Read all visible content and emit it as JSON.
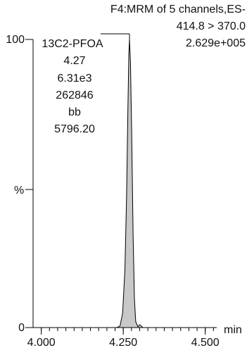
{
  "header": {
    "line1": "F4:MRM of 5 channels,ES-",
    "line2": "414.8 > 370.0",
    "line3": "2.629e+005"
  },
  "peak_label": {
    "name": "13C2-PFOA",
    "rt": "4.27",
    "area": "6.31e3",
    "height": "262846",
    "flag": "bb",
    "sn": "5796.20"
  },
  "axes": {
    "y_label": "%",
    "x_unit": "min"
  },
  "chart_data": {
    "type": "area",
    "title": "F4:MRM of 5 channels,ES-",
    "xlabel": "min",
    "ylabel": "%",
    "xlim": [
      3.975,
      4.535
    ],
    "ylim": [
      0,
      100
    ],
    "x_ticks": [
      4.0,
      4.25,
      4.5
    ],
    "x_tick_labels": [
      "4.000",
      "4.250",
      "4.500"
    ],
    "y_ticks": [
      0,
      100
    ],
    "y_tick_labels": [
      "0",
      "100"
    ],
    "fill_color": "#c8c8c8",
    "line_color": "#000000",
    "series": [
      {
        "name": "414.8 > 370.0",
        "x": [
          3.975,
          4.23,
          4.24,
          4.248,
          4.255,
          4.26,
          4.264,
          4.267,
          4.269,
          4.272,
          4.276,
          4.28,
          4.284,
          4.288,
          4.295,
          4.3,
          4.31,
          4.535
        ],
        "y": [
          0,
          0,
          0.5,
          5,
          20,
          45,
          75,
          95,
          100,
          92,
          65,
          32,
          10,
          2,
          0.3,
          1,
          0,
          0
        ]
      }
    ]
  }
}
